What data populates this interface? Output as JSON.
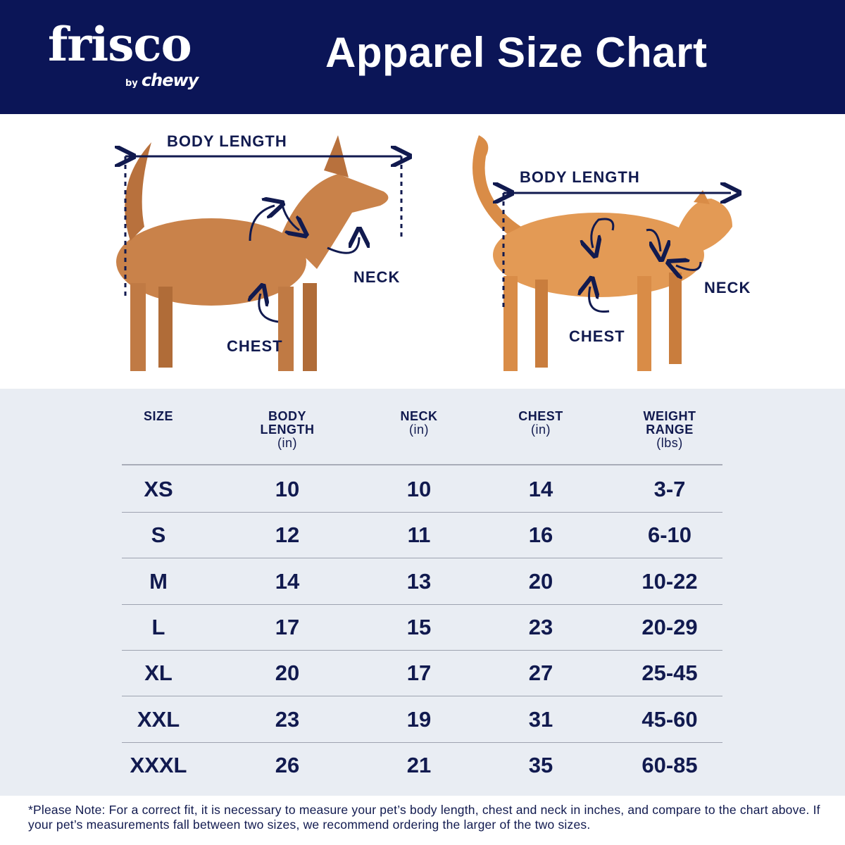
{
  "header": {
    "logo": {
      "brand": "frisco",
      "by": "by",
      "parent": "chewy"
    },
    "title": "Apparel Size Chart",
    "background_color": "#0b1557"
  },
  "illustration": {
    "dog": {
      "body_length": "BODY LENGTH",
      "neck": "NECK",
      "chest": "CHEST"
    },
    "cat": {
      "body_length": "BODY LENGTH",
      "neck": "NECK",
      "chest": "CHEST"
    }
  },
  "table": {
    "columns": [
      {
        "label": "SIZE",
        "unit": ""
      },
      {
        "label": "BODY LENGTH",
        "unit": "(in)"
      },
      {
        "label": "NECK",
        "unit": "(in)"
      },
      {
        "label": "CHEST",
        "unit": "(in)"
      },
      {
        "label": "WEIGHT RANGE",
        "unit": "(lbs)"
      }
    ],
    "rows": [
      [
        "XS",
        "10",
        "10",
        "14",
        "3-7"
      ],
      [
        "S",
        "12",
        "11",
        "16",
        "6-10"
      ],
      [
        "M",
        "14",
        "13",
        "20",
        "10-22"
      ],
      [
        "L",
        "17",
        "15",
        "23",
        "20-29"
      ],
      [
        "XL",
        "20",
        "17",
        "27",
        "25-45"
      ],
      [
        "XXL",
        "23",
        "19",
        "31",
        "45-60"
      ],
      [
        "XXXL",
        "26",
        "21",
        "35",
        "60-85"
      ]
    ]
  },
  "footer": {
    "note": "*Please Note: For a correct fit, it is necessary to measure your pet’s body length, chest and neck in inches, and compare to the chart above. If your pet’s measurements fall between two sizes, we recommend ordering the larger of the two sizes."
  }
}
